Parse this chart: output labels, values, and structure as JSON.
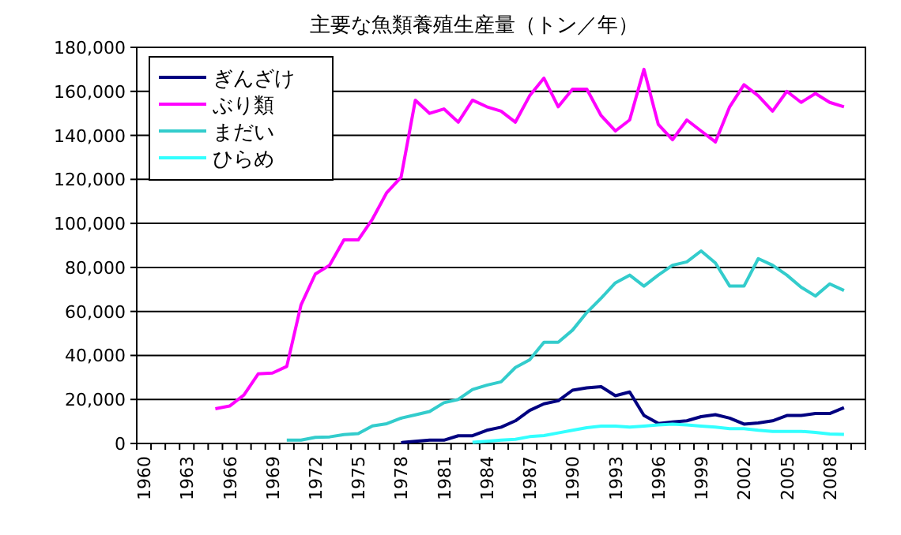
{
  "chart_data": {
    "type": "line",
    "title": "主要な魚類養殖生産量（トン／年）",
    "categories": [
      "1960",
      null,
      null,
      "1963",
      null,
      null,
      "1966",
      null,
      null,
      "1969",
      null,
      null,
      "1972",
      null,
      null,
      "1975",
      null,
      null,
      "1978",
      null,
      null,
      "1981",
      null,
      null,
      "1984",
      null,
      null,
      "1987",
      null,
      null,
      "1990",
      null,
      null,
      "1993",
      null,
      null,
      "1996",
      null,
      null,
      "1999",
      null,
      null,
      "2002",
      null,
      null,
      "2005",
      null,
      null,
      "2008",
      null,
      null
    ],
    "series": [
      {
        "name": "ぎんざけ",
        "color": "#000080",
        "values": [
          null,
          null,
          null,
          null,
          null,
          null,
          null,
          null,
          null,
          null,
          null,
          null,
          null,
          null,
          null,
          null,
          null,
          null,
          400,
          1000,
          1500,
          1500,
          3500,
          3500,
          6000,
          7400,
          10300,
          15000,
          18000,
          19400,
          24200,
          25300,
          25800,
          21700,
          23400,
          12700,
          9100,
          9800,
          10300,
          12200,
          13100,
          11500,
          8800,
          9300,
          10300,
          12700,
          12700,
          13600,
          13600,
          16300,
          null
        ]
      },
      {
        "name": "ぶり類",
        "color": "#ff00ff",
        "values": [
          null,
          null,
          null,
          null,
          null,
          15800,
          17000,
          22000,
          31600,
          32000,
          35000,
          63000,
          77000,
          81000,
          92500,
          92500,
          102000,
          114000,
          121000,
          156000,
          150000,
          152000,
          146000,
          156000,
          153000,
          151000,
          146000,
          158000,
          166000,
          153000,
          161000,
          161000,
          149000,
          142000,
          147000,
          170000,
          145000,
          138000,
          147000,
          142000,
          137000,
          153000,
          163000,
          158000,
          151000,
          160000,
          155000,
          159000,
          155000,
          153000,
          null
        ]
      },
      {
        "name": "まだい",
        "color": "#33cccc",
        "values": [
          null,
          null,
          null,
          null,
          null,
          null,
          null,
          null,
          null,
          null,
          1500,
          1500,
          2800,
          3000,
          4000,
          4500,
          8000,
          9000,
          11500,
          13000,
          14500,
          18500,
          20000,
          24500,
          26500,
          28000,
          34500,
          38000,
          46000,
          46000,
          51500,
          59500,
          66000,
          73000,
          76500,
          71500,
          76500,
          81000,
          82500,
          87500,
          82000,
          71500,
          71500,
          84000,
          81000,
          76500,
          71000,
          67000,
          72500,
          69500,
          null
        ]
      },
      {
        "name": "ひらめ",
        "color": "#33ffff",
        "values": [
          null,
          null,
          null,
          null,
          null,
          null,
          null,
          null,
          null,
          null,
          null,
          null,
          null,
          null,
          null,
          null,
          null,
          null,
          null,
          null,
          null,
          null,
          null,
          500,
          1000,
          1500,
          1900,
          3100,
          3600,
          4800,
          6000,
          7200,
          7900,
          7900,
          7400,
          7900,
          8400,
          8800,
          8400,
          7900,
          7400,
          6700,
          6700,
          6000,
          5500,
          5500,
          5500,
          5000,
          4300,
          4100,
          null
        ]
      }
    ],
    "ylim": [
      0,
      180000
    ],
    "yticks": [
      0,
      {
        "value": 20000,
        "label": "20,000"
      },
      {
        "value": 40000,
        "label": "40,000"
      },
      {
        "value": 60000,
        "label": "60,000"
      },
      {
        "value": 80000,
        "label": "80,000"
      },
      {
        "value": 100000,
        "label": "100,000"
      },
      {
        "value": 120000,
        "label": "120,000"
      },
      {
        "value": 140000,
        "label": "140,000"
      },
      {
        "value": 160000,
        "label": "160,000"
      },
      {
        "value": 180000,
        "label": "180,000"
      }
    ],
    "grid": "y",
    "legend": "top left"
  }
}
